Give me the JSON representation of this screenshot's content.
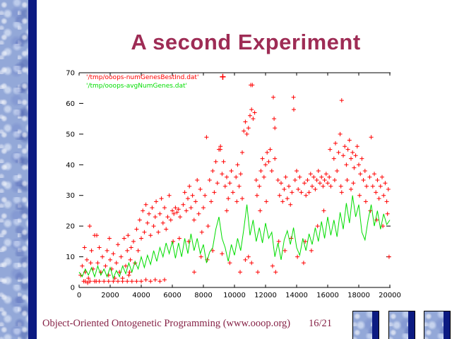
{
  "slide": {
    "title": "A second Experiment"
  },
  "footer": {
    "left": "Object-Oriented Ontogenetic Programming (www.ooop.org)",
    "right": "16/21"
  },
  "colors": {
    "title": "#9e2c55",
    "footer": "#862246",
    "navy_stripe": "#0c1b82",
    "sidebar_base": "#93a8d8",
    "series_best": "#ff0000",
    "series_avg": "#00dd00",
    "axis": "#000000"
  },
  "chart_data": {
    "type": "scatter",
    "title": "",
    "xlabel": "",
    "ylabel": "",
    "x_axis": {
      "min": 0,
      "max": 20000,
      "ticks": [
        0,
        2000,
        4000,
        6000,
        8000,
        10000,
        12000,
        14000,
        16000,
        18000,
        20000
      ]
    },
    "y_axis": {
      "min": 0,
      "max": 70,
      "ticks": [
        0,
        10,
        20,
        30,
        40,
        50,
        60,
        70
      ],
      "right_ticks": [
        10,
        20
      ]
    },
    "grid": false,
    "legend": {
      "position": "top-left-inside",
      "entries": [
        {
          "label": "'/tmp/ooops-numGenesBestInd.dat'",
          "color": "#ff0000",
          "marker": "+"
        },
        {
          "label": "'/tmp/ooops-avgNumGenes.dat'",
          "color": "#00dd00",
          "marker": ""
        }
      ]
    },
    "series": [
      {
        "name": "'/tmp/ooops-numGenesBestInd.dat'",
        "type": "points",
        "marker": "+",
        "color": "#ff0000",
        "points": [
          [
            100,
            4
          ],
          [
            200,
            7
          ],
          [
            300,
            2
          ],
          [
            350,
            13
          ],
          [
            400,
            5
          ],
          [
            500,
            9
          ],
          [
            550,
            1.5
          ],
          [
            600,
            3
          ],
          [
            682,
            20
          ],
          [
            750,
            8
          ],
          [
            800,
            12
          ],
          [
            900,
            6
          ],
          [
            1000,
            17
          ],
          [
            1100,
            2
          ],
          [
            1136,
            17
          ],
          [
            1200,
            8
          ],
          [
            1300,
            13
          ],
          [
            1400,
            5
          ],
          [
            1500,
            10
          ],
          [
            1600,
            2
          ],
          [
            1700,
            7
          ],
          [
            1800,
            12
          ],
          [
            1900,
            4
          ],
          [
            1950,
            16
          ],
          [
            2000,
            9
          ],
          [
            400,
            2
          ],
          [
            700,
            2
          ],
          [
            1000,
            2
          ],
          [
            1300,
            2
          ],
          [
            1600,
            2
          ],
          [
            1900,
            2
          ],
          [
            2200,
            2
          ],
          [
            2500,
            2
          ],
          [
            2800,
            2
          ],
          [
            3100,
            2
          ],
          [
            3400,
            2
          ],
          [
            3700,
            2
          ],
          [
            4000,
            2
          ],
          [
            4300,
            2.5
          ],
          [
            4600,
            2
          ],
          [
            4900,
            2.5
          ],
          [
            5200,
            2
          ],
          [
            5500,
            2.5
          ],
          [
            3250,
            5
          ],
          [
            7409,
            5
          ],
          [
            10363,
            5
          ],
          [
            11500,
            5
          ],
          [
            12650,
            5
          ],
          [
            2100,
            6
          ],
          [
            2200,
            11
          ],
          [
            2300,
            3
          ],
          [
            2400,
            8
          ],
          [
            2500,
            14
          ],
          [
            2600,
            5
          ],
          [
            2700,
            10
          ],
          [
            2800,
            3
          ],
          [
            2900,
            16
          ],
          [
            3000,
            7
          ],
          [
            3100,
            12
          ],
          [
            3200,
            4
          ],
          [
            3300,
            9
          ],
          [
            3150,
            17
          ],
          [
            3350,
            13
          ],
          [
            3500,
            15
          ],
          [
            3600,
            8
          ],
          [
            3700,
            19
          ],
          [
            3800,
            12
          ],
          [
            3900,
            22
          ],
          [
            4000,
            16
          ],
          [
            4100,
            25
          ],
          [
            4200,
            18
          ],
          [
            4300,
            27
          ],
          [
            4400,
            21
          ],
          [
            4500,
            24
          ],
          [
            4600,
            17
          ],
          [
            4700,
            26
          ],
          [
            4800,
            20
          ],
          [
            4900,
            23
          ],
          [
            4958,
            28
          ],
          [
            5100,
            18
          ],
          [
            5200,
            24
          ],
          [
            5300,
            29
          ],
          [
            5400,
            21
          ],
          [
            5500,
            26
          ],
          [
            5600,
            19
          ],
          [
            5700,
            23
          ],
          [
            5800,
            30
          ],
          [
            5900,
            22
          ],
          [
            6000,
            25
          ],
          [
            6100,
            24
          ],
          [
            6200,
            26
          ],
          [
            6300,
            24.5
          ],
          [
            6400,
            25.5
          ],
          [
            6500,
            23
          ],
          [
            6050,
            15
          ],
          [
            6450,
            16
          ],
          [
            6700,
            27
          ],
          [
            6800,
            31
          ],
          [
            6900,
            25
          ],
          [
            7000,
            29
          ],
          [
            7100,
            33
          ],
          [
            7200,
            26
          ],
          [
            7300,
            30
          ],
          [
            7400,
            22
          ],
          [
            7500,
            28
          ],
          [
            7600,
            35
          ],
          [
            7700,
            24
          ],
          [
            7800,
            32
          ],
          [
            7900,
            18
          ],
          [
            8000,
            26
          ],
          [
            8100,
            30
          ],
          [
            8200,
            49
          ],
          [
            8300,
            20
          ],
          [
            7050,
            15
          ],
          [
            7850,
            10
          ],
          [
            8250,
            9
          ],
          [
            8400,
            35
          ],
          [
            8500,
            28
          ],
          [
            8600,
            38
          ],
          [
            8700,
            31
          ],
          [
            8800,
            41
          ],
          [
            8900,
            34
          ],
          [
            9000,
            45
          ],
          [
            9090,
            45
          ],
          [
            9100,
            46
          ],
          [
            9200,
            37
          ],
          [
            9300,
            41
          ],
          [
            9400,
            33
          ],
          [
            9500,
            36
          ],
          [
            9600,
            29
          ],
          [
            9700,
            34
          ],
          [
            9800,
            38
          ],
          [
            9900,
            31
          ],
          [
            9500,
            25
          ],
          [
            8600,
            12
          ],
          [
            9200,
            11
          ],
          [
            9700,
            8
          ],
          [
            10100,
            36
          ],
          [
            10200,
            40
          ],
          [
            10300,
            33
          ],
          [
            10400,
            37
          ],
          [
            10500,
            44
          ],
          [
            10600,
            51
          ],
          [
            10700,
            54
          ],
          [
            10800,
            50
          ],
          [
            10900,
            52
          ],
          [
            11000,
            56
          ],
          [
            11100,
            58
          ],
          [
            11200,
            55
          ],
          [
            11300,
            57
          ],
          [
            11400,
            35
          ],
          [
            10500,
            29
          ],
          [
            10700,
            9
          ],
          [
            10900,
            10
          ],
          [
            11100,
            8
          ],
          [
            10150,
            28
          ],
          [
            11450,
            30
          ],
          [
            11050,
            66
          ],
          [
            11150,
            66
          ],
          [
            11600,
            33
          ],
          [
            11700,
            38
          ],
          [
            11800,
            42
          ],
          [
            11900,
            36
          ],
          [
            12000,
            40
          ],
          [
            12100,
            44
          ],
          [
            12200,
            41
          ],
          [
            12300,
            45
          ],
          [
            12400,
            38
          ],
          [
            12500,
            62
          ],
          [
            12550,
            55
          ],
          [
            12600,
            52
          ],
          [
            12600,
            42
          ],
          [
            11650,
            25
          ],
          [
            12050,
            28
          ],
          [
            12450,
            7
          ],
          [
            12800,
            35
          ],
          [
            12900,
            30
          ],
          [
            13000,
            34
          ],
          [
            13100,
            28
          ],
          [
            13200,
            32
          ],
          [
            13300,
            36
          ],
          [
            13400,
            29
          ],
          [
            13500,
            33
          ],
          [
            13600,
            27
          ],
          [
            13700,
            31
          ],
          [
            13800,
            62
          ],
          [
            13820,
            58
          ],
          [
            13900,
            35
          ],
          [
            14000,
            38
          ],
          [
            14100,
            32
          ],
          [
            14200,
            36
          ],
          [
            14300,
            31
          ],
          [
            12850,
            15
          ],
          [
            13250,
            12
          ],
          [
            13650,
            16
          ],
          [
            14050,
            10
          ],
          [
            14450,
            8
          ],
          [
            14500,
            34
          ],
          [
            14600,
            30
          ],
          [
            14700,
            35
          ],
          [
            14800,
            31
          ],
          [
            14900,
            37
          ],
          [
            15000,
            33
          ],
          [
            15100,
            36
          ],
          [
            15200,
            32
          ],
          [
            15300,
            35
          ],
          [
            15400,
            38
          ],
          [
            15500,
            34
          ],
          [
            15600,
            36
          ],
          [
            15700,
            33
          ],
          [
            15800,
            35
          ],
          [
            15900,
            37
          ],
          [
            16000,
            34
          ],
          [
            16100,
            36
          ],
          [
            16200,
            33
          ],
          [
            14550,
            15
          ],
          [
            14950,
            12
          ],
          [
            15350,
            20
          ],
          [
            15750,
            25
          ],
          [
            16150,
            45
          ],
          [
            16400,
            42
          ],
          [
            16500,
            47
          ],
          [
            16600,
            38
          ],
          [
            16700,
            44
          ],
          [
            16800,
            50
          ],
          [
            16900,
            61
          ],
          [
            17000,
            43
          ],
          [
            17100,
            46
          ],
          [
            17200,
            40
          ],
          [
            17300,
            45
          ],
          [
            17400,
            48
          ],
          [
            17500,
            42
          ],
          [
            17600,
            44
          ],
          [
            17700,
            39
          ],
          [
            17800,
            43
          ],
          [
            17900,
            46
          ],
          [
            18000,
            40
          ],
          [
            18100,
            37
          ],
          [
            18200,
            42
          ],
          [
            18300,
            35
          ],
          [
            18400,
            38
          ],
          [
            18500,
            33
          ],
          [
            16450,
            35
          ],
          [
            16850,
            33
          ],
          [
            17250,
            35
          ],
          [
            17650,
            34
          ],
          [
            18050,
            30
          ],
          [
            18450,
            28
          ],
          [
            16900,
            31
          ],
          [
            17500,
            32
          ],
          [
            18700,
            36
          ],
          [
            18800,
            49
          ],
          [
            18900,
            33
          ],
          [
            19000,
            37
          ],
          [
            19100,
            31
          ],
          [
            19200,
            35
          ],
          [
            19300,
            29
          ],
          [
            19400,
            33
          ],
          [
            19500,
            36
          ],
          [
            19600,
            30
          ],
          [
            19700,
            34
          ],
          [
            19800,
            28
          ],
          [
            19900,
            32
          ],
          [
            18750,
            25
          ],
          [
            19150,
            22
          ],
          [
            19550,
            20
          ],
          [
            19850,
            24
          ],
          [
            19950,
            10
          ]
        ]
      },
      {
        "name": "'/tmp/ooops-avgNumGenes.dat'",
        "type": "line",
        "color": "#00dd00",
        "x_start": 0,
        "x_step": 200,
        "values": [
          5,
          3.5,
          6,
          4,
          6.5,
          3.5,
          7,
          4,
          6,
          3.5,
          6.5,
          3,
          5.5,
          3.5,
          7,
          4.5,
          8,
          5,
          8.5,
          6,
          10,
          6.5,
          10.5,
          7.5,
          12,
          8.5,
          13,
          10,
          14.5,
          11,
          15,
          9.5,
          14.5,
          10,
          16,
          11,
          17.5,
          12,
          16,
          11,
          14,
          8,
          11.5,
          13,
          19,
          23,
          16,
          13,
          8.5,
          14,
          10.5,
          16,
          12,
          19,
          27,
          17,
          22,
          15,
          19.5,
          14.5,
          21,
          16,
          18,
          10,
          14.5,
          9,
          15.5,
          18.5,
          14,
          19.5,
          13,
          10.5,
          16,
          12,
          17.5,
          14,
          19.5,
          15,
          21.5,
          16,
          23,
          17,
          22,
          16.5,
          24.5,
          19,
          27.5,
          21,
          30,
          23,
          27,
          18,
          15.5,
          22,
          27,
          20,
          25,
          19,
          24,
          20.5,
          22
        ]
      }
    ]
  }
}
